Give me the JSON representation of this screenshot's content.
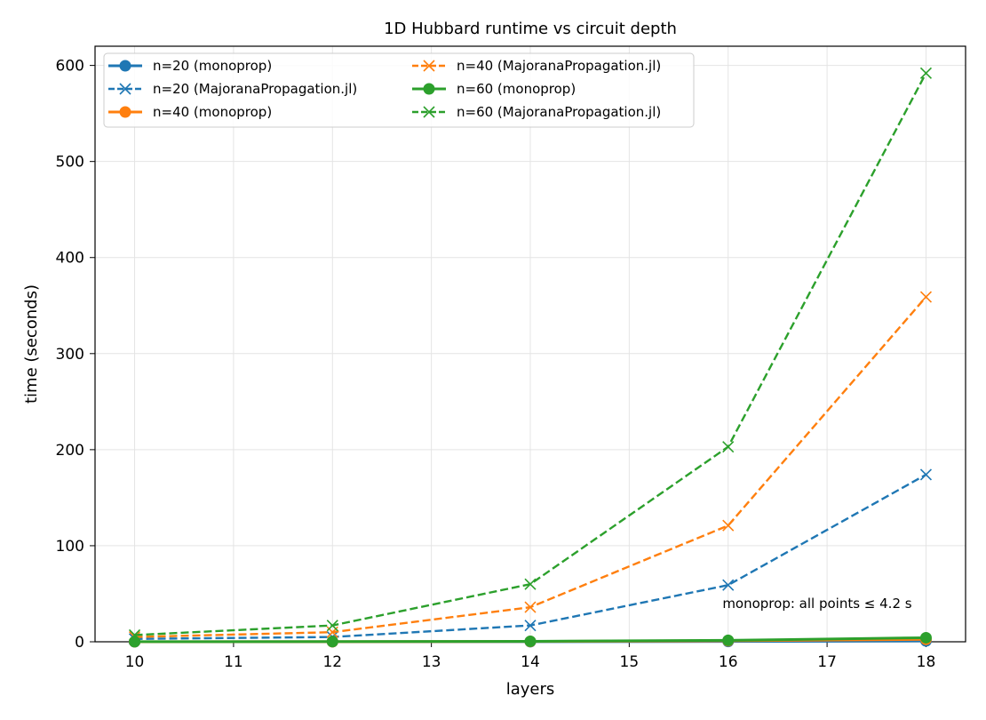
{
  "chart_data": {
    "type": "line",
    "title": "1D Hubbard runtime vs circuit depth",
    "xlabel": "layers",
    "ylabel": "time (seconds)",
    "x": [
      10,
      12,
      14,
      16,
      18
    ],
    "xlim": [
      9.6,
      18.4
    ],
    "ylim": [
      0,
      620
    ],
    "xticks": [
      10,
      11,
      12,
      13,
      14,
      15,
      16,
      17,
      18
    ],
    "yticks": [
      0,
      100,
      200,
      300,
      400,
      500,
      600
    ],
    "grid": true,
    "legend_position": "upper-left",
    "legend_columns": 2,
    "series": [
      {
        "name": "n=20 (monoprop)",
        "color": "#1f77b4",
        "style": "solid",
        "marker": "circle",
        "values": [
          0.02,
          0.05,
          0.1,
          0.3,
          0.9
        ]
      },
      {
        "name": "n=20 (MajoranaPropagation.jl)",
        "color": "#1f77b4",
        "style": "dashed",
        "marker": "x",
        "values": [
          3,
          5,
          17,
          59,
          174
        ]
      },
      {
        "name": "n=40 (monoprop)",
        "color": "#ff7f0e",
        "style": "solid",
        "marker": "circle",
        "values": [
          0.05,
          0.1,
          0.3,
          1.0,
          2.5
        ]
      },
      {
        "name": "n=40 (MajoranaPropagation.jl)",
        "color": "#ff7f0e",
        "style": "dashed",
        "marker": "x",
        "values": [
          5,
          10,
          36,
          121,
          359
        ]
      },
      {
        "name": "n=60 (monoprop)",
        "color": "#2ca02c",
        "style": "solid",
        "marker": "circle",
        "values": [
          0.1,
          0.2,
          0.5,
          1.5,
          4.2
        ]
      },
      {
        "name": "n=60 (MajoranaPropagation.jl)",
        "color": "#2ca02c",
        "style": "dashed",
        "marker": "x",
        "values": [
          7,
          17,
          60,
          203,
          592
        ]
      }
    ],
    "annotation": {
      "text": "monoprop: all points ≤ 4.2 s",
      "x": 16.9,
      "y": 35
    }
  }
}
